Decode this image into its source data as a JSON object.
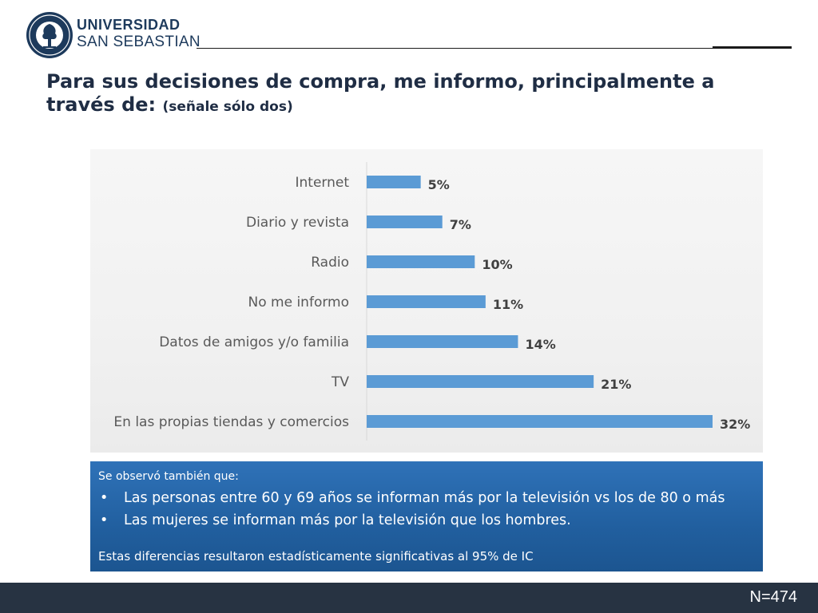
{
  "header": {
    "university_line1": "UNIVERSIDAD",
    "university_line2": "SAN SEBASTIAN",
    "logo_icon": "university-seal-icon",
    "rule_color": "#1a1a1a"
  },
  "title": {
    "main": "Para sus decisiones de compra, me informo, principalmente a través de:",
    "sub": "(señale sólo dos)"
  },
  "chart_data": {
    "type": "bar",
    "orientation": "horizontal",
    "categories": [
      "Internet",
      "Diario y revista",
      "Radio",
      "No me informo",
      "Datos de amigos y/o familia",
      "TV",
      "En las propias tiendas y comercios"
    ],
    "values": [
      5,
      7,
      10,
      11,
      14,
      21,
      32
    ],
    "value_labels": [
      "5%",
      "7%",
      "10%",
      "11%",
      "14%",
      "21%",
      "32%"
    ],
    "unit": "%",
    "xlim": [
      0,
      32
    ],
    "title": "",
    "xlabel": "",
    "ylabel": "",
    "grid": false,
    "bar_color": "#5b9bd5"
  },
  "info": {
    "intro": "Se observó también que:",
    "bullet_symbol": "•",
    "bullets": [
      "Las personas entre 60 y 69 años se informan más por la televisión vs los de 80 o más",
      "Las mujeres se informan más por la televisión que los hombres."
    ],
    "footer": "Estas diferencias resultaron estadísticamente significativas al 95% de IC",
    "box_color": "#2566a8"
  },
  "footer": {
    "n_label": "N=474",
    "bar_color": "#273342"
  }
}
